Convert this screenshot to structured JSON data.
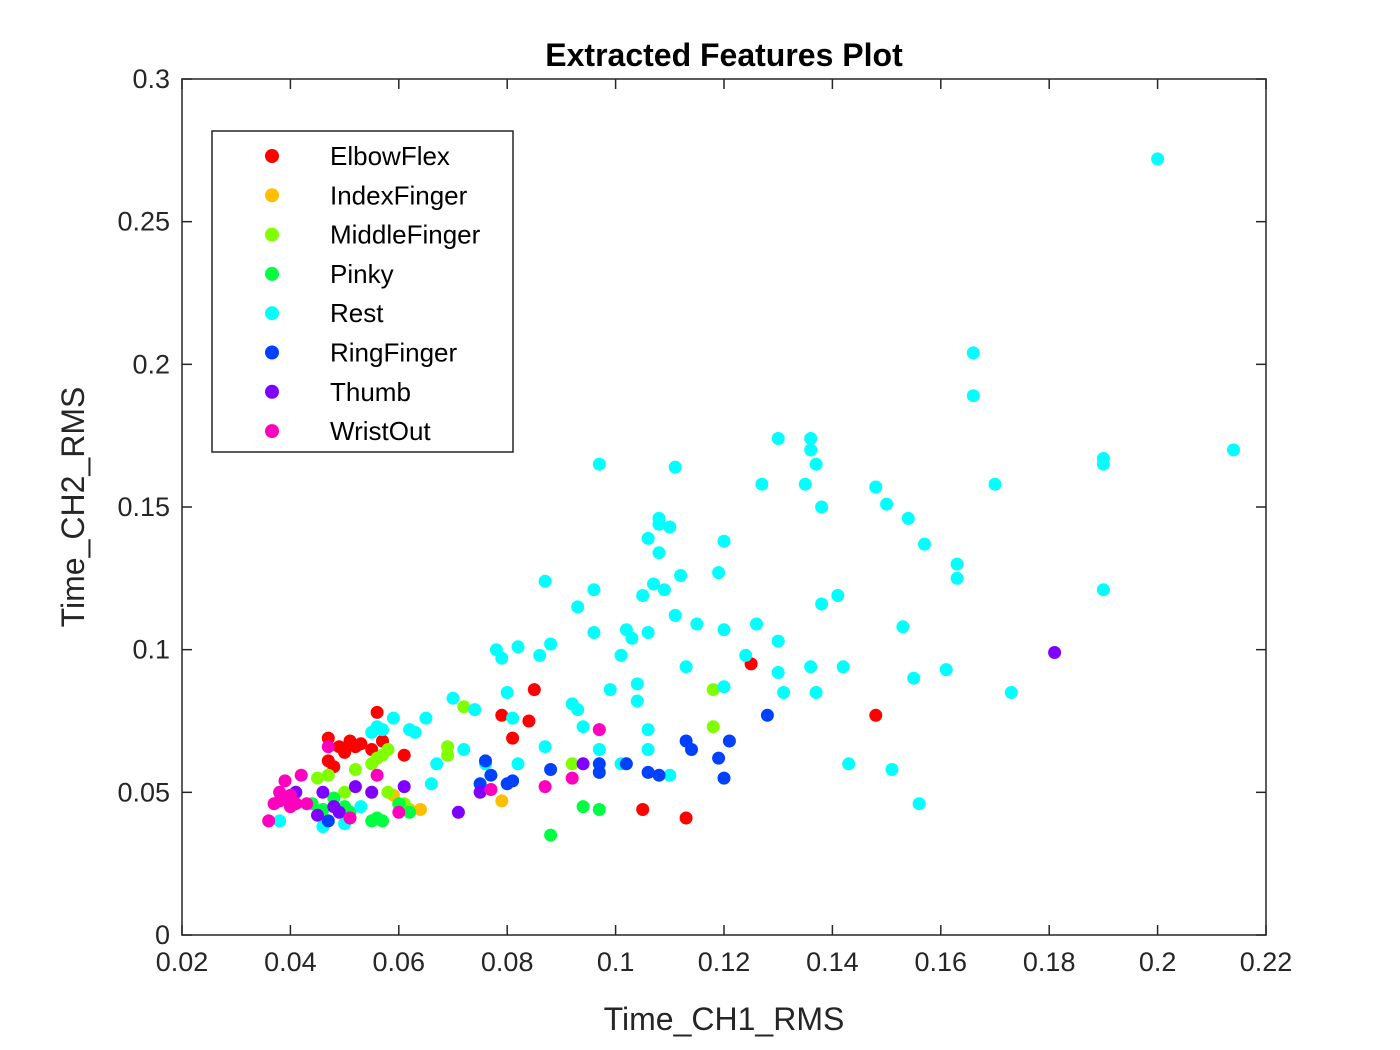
{
  "chart_data": {
    "type": "scatter",
    "title": "Extracted Features Plot",
    "xlabel": "Time_CH1_RMS",
    "ylabel": "Time_CH2_RMS",
    "xlim": [
      0.02,
      0.22
    ],
    "ylim": [
      0,
      0.3
    ],
    "xticks": [
      "0.02",
      "0.04",
      "0.06",
      "0.08",
      "0.1",
      "0.12",
      "0.14",
      "0.16",
      "0.18",
      "0.2",
      "0.22"
    ],
    "yticks": [
      "0",
      "0.05",
      "0.1",
      "0.15",
      "0.2",
      "0.25",
      "0.3"
    ],
    "grid": false,
    "legend_position": "top-left",
    "series": [
      {
        "name": "ElbowFlex",
        "color": "#ff0000",
        "points": [
          [
            0.047,
            0.069
          ],
          [
            0.049,
            0.066
          ],
          [
            0.051,
            0.068
          ],
          [
            0.052,
            0.066
          ],
          [
            0.053,
            0.067
          ],
          [
            0.055,
            0.065
          ],
          [
            0.056,
            0.078
          ],
          [
            0.057,
            0.068
          ],
          [
            0.05,
            0.064
          ],
          [
            0.047,
            0.061
          ],
          [
            0.048,
            0.059
          ],
          [
            0.061,
            0.063
          ],
          [
            0.079,
            0.077
          ],
          [
            0.081,
            0.069
          ],
          [
            0.084,
            0.075
          ],
          [
            0.085,
            0.086
          ],
          [
            0.105,
            0.044
          ],
          [
            0.113,
            0.041
          ],
          [
            0.125,
            0.095
          ],
          [
            0.148,
            0.077
          ]
        ]
      },
      {
        "name": "IndexFinger",
        "color": "#ffbf00",
        "points": [
          [
            0.059,
            0.049
          ],
          [
            0.06,
            0.046
          ],
          [
            0.062,
            0.044
          ],
          [
            0.064,
            0.044
          ],
          [
            0.079,
            0.047
          ],
          [
            0.055,
            0.05
          ]
        ]
      },
      {
        "name": "MiddleFinger",
        "color": "#80ff00",
        "points": [
          [
            0.045,
            0.055
          ],
          [
            0.047,
            0.056
          ],
          [
            0.05,
            0.05
          ],
          [
            0.052,
            0.058
          ],
          [
            0.055,
            0.06
          ],
          [
            0.056,
            0.062
          ],
          [
            0.057,
            0.063
          ],
          [
            0.058,
            0.065
          ],
          [
            0.058,
            0.05
          ],
          [
            0.061,
            0.046
          ],
          [
            0.069,
            0.063
          ],
          [
            0.069,
            0.066
          ],
          [
            0.072,
            0.08
          ],
          [
            0.092,
            0.06
          ],
          [
            0.118,
            0.086
          ],
          [
            0.118,
            0.073
          ]
        ]
      },
      {
        "name": "Pinky",
        "color": "#00ff40",
        "points": [
          [
            0.044,
            0.046
          ],
          [
            0.046,
            0.044
          ],
          [
            0.048,
            0.048
          ],
          [
            0.05,
            0.045
          ],
          [
            0.051,
            0.043
          ],
          [
            0.055,
            0.04
          ],
          [
            0.056,
            0.041
          ],
          [
            0.057,
            0.04
          ],
          [
            0.06,
            0.046
          ],
          [
            0.062,
            0.043
          ],
          [
            0.088,
            0.035
          ],
          [
            0.094,
            0.045
          ],
          [
            0.097,
            0.044
          ]
        ]
      },
      {
        "name": "Rest",
        "color": "#00ffff",
        "points": [
          [
            0.038,
            0.04
          ],
          [
            0.046,
            0.038
          ],
          [
            0.05,
            0.039
          ],
          [
            0.053,
            0.045
          ],
          [
            0.055,
            0.071
          ],
          [
            0.056,
            0.073
          ],
          [
            0.057,
            0.072
          ],
          [
            0.059,
            0.076
          ],
          [
            0.062,
            0.072
          ],
          [
            0.063,
            0.071
          ],
          [
            0.065,
            0.076
          ],
          [
            0.066,
            0.053
          ],
          [
            0.067,
            0.06
          ],
          [
            0.07,
            0.083
          ],
          [
            0.072,
            0.065
          ],
          [
            0.074,
            0.079
          ],
          [
            0.076,
            0.06
          ],
          [
            0.078,
            0.1
          ],
          [
            0.079,
            0.097
          ],
          [
            0.08,
            0.085
          ],
          [
            0.082,
            0.101
          ],
          [
            0.081,
            0.076
          ],
          [
            0.082,
            0.06
          ],
          [
            0.086,
            0.098
          ],
          [
            0.087,
            0.124
          ],
          [
            0.087,
            0.066
          ],
          [
            0.088,
            0.102
          ],
          [
            0.092,
            0.081
          ],
          [
            0.093,
            0.115
          ],
          [
            0.093,
            0.079
          ],
          [
            0.094,
            0.073
          ],
          [
            0.096,
            0.121
          ],
          [
            0.096,
            0.106
          ],
          [
            0.097,
            0.065
          ],
          [
            0.097,
            0.165
          ],
          [
            0.099,
            0.086
          ],
          [
            0.101,
            0.098
          ],
          [
            0.101,
            0.06
          ],
          [
            0.102,
            0.107
          ],
          [
            0.103,
            0.104
          ],
          [
            0.104,
            0.082
          ],
          [
            0.104,
            0.088
          ],
          [
            0.105,
            0.119
          ],
          [
            0.106,
            0.139
          ],
          [
            0.106,
            0.106
          ],
          [
            0.106,
            0.072
          ],
          [
            0.106,
            0.065
          ],
          [
            0.107,
            0.123
          ],
          [
            0.108,
            0.146
          ],
          [
            0.108,
            0.134
          ],
          [
            0.108,
            0.144
          ],
          [
            0.109,
            0.121
          ],
          [
            0.11,
            0.143
          ],
          [
            0.11,
            0.056
          ],
          [
            0.111,
            0.164
          ],
          [
            0.111,
            0.112
          ],
          [
            0.112,
            0.126
          ],
          [
            0.113,
            0.094
          ],
          [
            0.115,
            0.109
          ],
          [
            0.119,
            0.127
          ],
          [
            0.12,
            0.138
          ],
          [
            0.12,
            0.107
          ],
          [
            0.12,
            0.087
          ],
          [
            0.124,
            0.098
          ],
          [
            0.126,
            0.109
          ],
          [
            0.127,
            0.158
          ],
          [
            0.13,
            0.174
          ],
          [
            0.13,
            0.103
          ],
          [
            0.131,
            0.085
          ],
          [
            0.13,
            0.092
          ],
          [
            0.135,
            0.158
          ],
          [
            0.136,
            0.17
          ],
          [
            0.136,
            0.174
          ],
          [
            0.136,
            0.094
          ],
          [
            0.137,
            0.165
          ],
          [
            0.137,
            0.085
          ],
          [
            0.138,
            0.15
          ],
          [
            0.138,
            0.116
          ],
          [
            0.141,
            0.119
          ],
          [
            0.142,
            0.094
          ],
          [
            0.143,
            0.06
          ],
          [
            0.148,
            0.157
          ],
          [
            0.15,
            0.151
          ],
          [
            0.151,
            0.058
          ],
          [
            0.153,
            0.108
          ],
          [
            0.154,
            0.146
          ],
          [
            0.155,
            0.09
          ],
          [
            0.156,
            0.046
          ],
          [
            0.157,
            0.137
          ],
          [
            0.161,
            0.093
          ],
          [
            0.163,
            0.13
          ],
          [
            0.163,
            0.125
          ],
          [
            0.166,
            0.204
          ],
          [
            0.166,
            0.189
          ],
          [
            0.17,
            0.158
          ],
          [
            0.173,
            0.085
          ],
          [
            0.19,
            0.165
          ],
          [
            0.19,
            0.167
          ],
          [
            0.19,
            0.121
          ],
          [
            0.2,
            0.272
          ],
          [
            0.214,
            0.17
          ]
        ]
      },
      {
        "name": "RingFinger",
        "color": "#0040ff",
        "points": [
          [
            0.047,
            0.04
          ],
          [
            0.075,
            0.053
          ],
          [
            0.076,
            0.061
          ],
          [
            0.077,
            0.056
          ],
          [
            0.08,
            0.053
          ],
          [
            0.081,
            0.054
          ],
          [
            0.088,
            0.058
          ],
          [
            0.097,
            0.057
          ],
          [
            0.097,
            0.06
          ],
          [
            0.102,
            0.06
          ],
          [
            0.106,
            0.057
          ],
          [
            0.108,
            0.056
          ],
          [
            0.113,
            0.068
          ],
          [
            0.114,
            0.065
          ],
          [
            0.119,
            0.062
          ],
          [
            0.12,
            0.055
          ],
          [
            0.121,
            0.068
          ],
          [
            0.128,
            0.077
          ]
        ]
      },
      {
        "name": "Thumb",
        "color": "#7f00ff",
        "points": [
          [
            0.041,
            0.05
          ],
          [
            0.045,
            0.042
          ],
          [
            0.046,
            0.05
          ],
          [
            0.048,
            0.045
          ],
          [
            0.049,
            0.043
          ],
          [
            0.052,
            0.052
          ],
          [
            0.055,
            0.05
          ],
          [
            0.061,
            0.052
          ],
          [
            0.071,
            0.043
          ],
          [
            0.075,
            0.05
          ],
          [
            0.094,
            0.06
          ],
          [
            0.181,
            0.099
          ]
        ]
      },
      {
        "name": "WristOut",
        "color": "#ff00bf",
        "points": [
          [
            0.036,
            0.04
          ],
          [
            0.037,
            0.046
          ],
          [
            0.038,
            0.047
          ],
          [
            0.038,
            0.05
          ],
          [
            0.039,
            0.048
          ],
          [
            0.039,
            0.054
          ],
          [
            0.04,
            0.045
          ],
          [
            0.04,
            0.049
          ],
          [
            0.041,
            0.046
          ],
          [
            0.042,
            0.056
          ],
          [
            0.043,
            0.046
          ],
          [
            0.047,
            0.066
          ],
          [
            0.051,
            0.041
          ],
          [
            0.056,
            0.056
          ],
          [
            0.06,
            0.043
          ],
          [
            0.077,
            0.051
          ],
          [
            0.087,
            0.052
          ],
          [
            0.092,
            0.055
          ],
          [
            0.097,
            0.072
          ]
        ]
      }
    ]
  }
}
